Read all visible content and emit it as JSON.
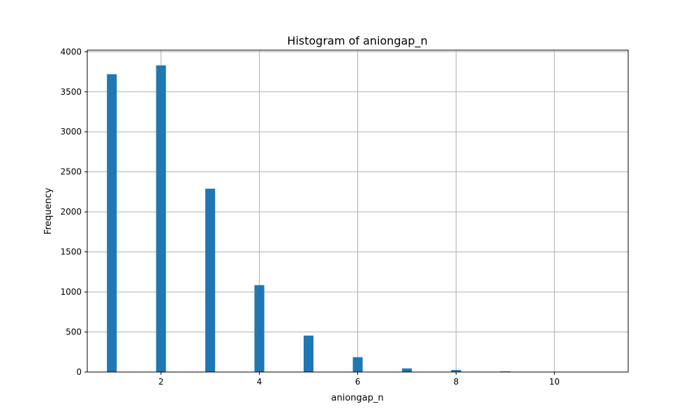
{
  "chart_data": {
    "type": "bar",
    "title": "Histogram of aniongap_n",
    "xlabel": "aniongap_n",
    "ylabel": "Frequency",
    "xlim": [
      0.5,
      11.5
    ],
    "ylim": [
      0,
      4020
    ],
    "xticks": [
      2,
      4,
      6,
      8,
      10
    ],
    "yticks": [
      0,
      500,
      1000,
      1500,
      2000,
      2500,
      3000,
      3500,
      4000
    ],
    "grid": true,
    "bar_color": "#1f77b4",
    "bin_width": 0.2,
    "bars": [
      {
        "x": 1,
        "value": 3720
      },
      {
        "x": 2,
        "value": 3830
      },
      {
        "x": 3,
        "value": 2290
      },
      {
        "x": 4,
        "value": 1085
      },
      {
        "x": 5,
        "value": 455
      },
      {
        "x": 6,
        "value": 185
      },
      {
        "x": 7,
        "value": 45
      },
      {
        "x": 8,
        "value": 25
      },
      {
        "x": 9,
        "value": 8
      },
      {
        "x": 10,
        "value": 2
      },
      {
        "x": 11,
        "value": 1
      }
    ]
  }
}
